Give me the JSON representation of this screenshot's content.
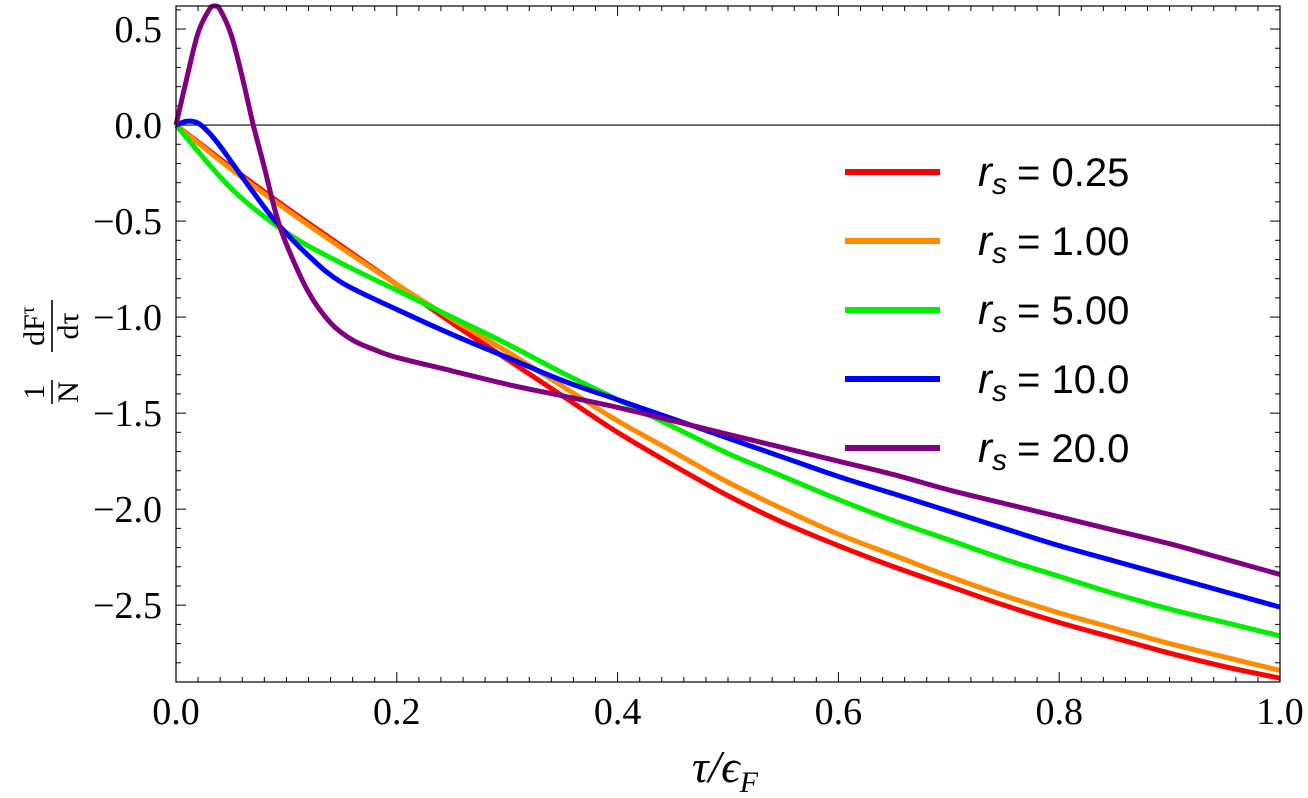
{
  "chart_data": {
    "type": "line",
    "title": "",
    "xlabel": "τ/ϵ_F",
    "xlabel_parts": {
      "main": "τ/ϵ",
      "sub": "F"
    },
    "ylabel": "(1/N) dF^τ/dτ",
    "ylabel_parts": {
      "num_left": "1",
      "den_left": "N",
      "num_right": "dF",
      "num_right_sup": "τ",
      "den_right": "dτ"
    },
    "xlim": [
      0.0,
      1.0
    ],
    "ylim": [
      -2.9,
      0.62
    ],
    "xticks": [
      0.0,
      0.2,
      0.4,
      0.6,
      0.8,
      1.0
    ],
    "xtick_labels": [
      "0.0",
      "0.2",
      "0.4",
      "0.6",
      "0.8",
      "1.0"
    ],
    "yticks": [
      0.5,
      0.0,
      -0.5,
      -1.0,
      -1.5,
      -2.0,
      -2.5
    ],
    "ytick_labels": [
      "0.5",
      "0.0",
      "−0.5",
      "−1.0",
      "−1.5",
      "−2.0",
      "−2.5"
    ],
    "legend_position": "center-right",
    "grid": false,
    "zero_line": true,
    "series": [
      {
        "name": "r_s = 0.25",
        "legend_var": "r",
        "legend_sub": "s",
        "legend_value": "= 0.25",
        "color": "#ff0000",
        "x": [
          0.0,
          0.05,
          0.1,
          0.15,
          0.2,
          0.25,
          0.3,
          0.35,
          0.4,
          0.45,
          0.5,
          0.55,
          0.6,
          0.65,
          0.7,
          0.75,
          0.8,
          0.85,
          0.9,
          0.95,
          1.0
        ],
        "y": [
          0.0,
          -0.22,
          -0.43,
          -0.63,
          -0.83,
          -1.03,
          -1.22,
          -1.41,
          -1.6,
          -1.77,
          -1.93,
          -2.07,
          -2.19,
          -2.3,
          -2.4,
          -2.5,
          -2.59,
          -2.67,
          -2.75,
          -2.82,
          -2.88
        ]
      },
      {
        "name": "r_s = 1.00",
        "legend_var": "r",
        "legend_sub": "s",
        "legend_value": "= 1.00",
        "color": "#ff8c00",
        "x": [
          0.0,
          0.05,
          0.1,
          0.15,
          0.2,
          0.25,
          0.3,
          0.35,
          0.4,
          0.45,
          0.5,
          0.55,
          0.6,
          0.65,
          0.7,
          0.75,
          0.8,
          0.85,
          0.9,
          0.95,
          1.0
        ],
        "y": [
          0.0,
          -0.23,
          -0.44,
          -0.64,
          -0.83,
          -1.01,
          -1.18,
          -1.36,
          -1.54,
          -1.7,
          -1.86,
          -2.0,
          -2.13,
          -2.24,
          -2.35,
          -2.45,
          -2.54,
          -2.62,
          -2.7,
          -2.77,
          -2.84
        ]
      },
      {
        "name": "r_s = 5.00",
        "legend_var": "r",
        "legend_sub": "s",
        "legend_value": "= 5.00",
        "color": "#00ee00",
        "x": [
          0.0,
          0.05,
          0.1,
          0.15,
          0.2,
          0.25,
          0.3,
          0.35,
          0.4,
          0.45,
          0.5,
          0.55,
          0.6,
          0.65,
          0.7,
          0.75,
          0.8,
          0.85,
          0.9,
          0.95,
          1.0
        ],
        "y": [
          0.0,
          -0.33,
          -0.56,
          -0.72,
          -0.86,
          -1.0,
          -1.14,
          -1.29,
          -1.43,
          -1.57,
          -1.71,
          -1.83,
          -1.95,
          -2.06,
          -2.16,
          -2.26,
          -2.35,
          -2.44,
          -2.52,
          -2.59,
          -2.66
        ]
      },
      {
        "name": "r_s = 10.0",
        "legend_var": "r",
        "legend_sub": "s",
        "legend_value": "= 10.0",
        "color": "#0000ff",
        "x": [
          0.0,
          0.01,
          0.02,
          0.03,
          0.04,
          0.05,
          0.07,
          0.09,
          0.12,
          0.15,
          0.2,
          0.25,
          0.3,
          0.35,
          0.4,
          0.45,
          0.5,
          0.55,
          0.6,
          0.65,
          0.7,
          0.75,
          0.8,
          0.85,
          0.9,
          0.95,
          1.0
        ],
        "y": [
          0.0,
          0.02,
          0.01,
          -0.04,
          -0.11,
          -0.19,
          -0.35,
          -0.5,
          -0.68,
          -0.82,
          -0.96,
          -1.09,
          -1.21,
          -1.33,
          -1.43,
          -1.53,
          -1.63,
          -1.73,
          -1.83,
          -1.92,
          -2.01,
          -2.1,
          -2.19,
          -2.27,
          -2.35,
          -2.43,
          -2.51
        ]
      },
      {
        "name": "r_s = 20.0",
        "legend_var": "r",
        "legend_sub": "s",
        "legend_value": "= 20.0",
        "color": "#800080",
        "x": [
          0.0,
          0.01,
          0.02,
          0.03,
          0.035,
          0.04,
          0.05,
          0.06,
          0.07,
          0.08,
          0.09,
          0.1,
          0.12,
          0.14,
          0.16,
          0.18,
          0.2,
          0.25,
          0.3,
          0.35,
          0.4,
          0.45,
          0.5,
          0.55,
          0.6,
          0.65,
          0.7,
          0.75,
          0.8,
          0.85,
          0.9,
          0.95,
          1.0
        ],
        "y": [
          0.0,
          0.25,
          0.48,
          0.6,
          0.62,
          0.6,
          0.47,
          0.25,
          0.0,
          -0.22,
          -0.45,
          -0.62,
          -0.87,
          -1.03,
          -1.12,
          -1.17,
          -1.21,
          -1.28,
          -1.35,
          -1.41,
          -1.47,
          -1.54,
          -1.61,
          -1.68,
          -1.75,
          -1.82,
          -1.9,
          -1.97,
          -2.04,
          -2.11,
          -2.18,
          -2.26,
          -2.34
        ]
      }
    ]
  }
}
